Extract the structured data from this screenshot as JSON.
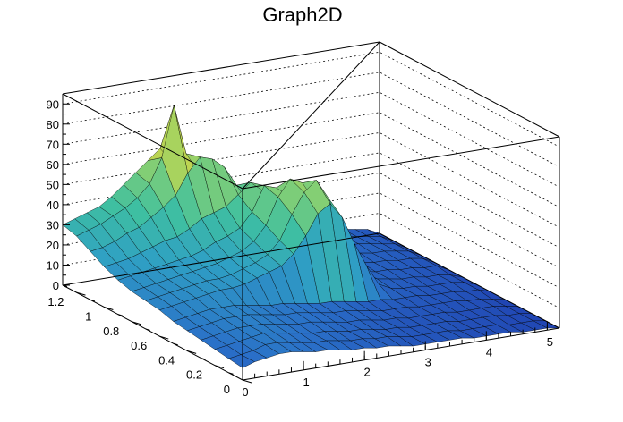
{
  "chart_data": {
    "type": "surface",
    "title": "Graph2D",
    "xlabel": "",
    "ylabel": "",
    "zlabel": "",
    "xlim": [
      0,
      5.2
    ],
    "ylim": [
      0,
      1.3
    ],
    "zlim": [
      0,
      95
    ],
    "grid": true,
    "colormap": "viridis-like (blue-green-yellow)",
    "colormap_stops": [
      "#1f3fb0",
      "#2a70c8",
      "#2fa0c4",
      "#3fc0a0",
      "#8ad070",
      "#e8d838",
      "#f6e718"
    ],
    "x_ticks": [
      0,
      1,
      2,
      3,
      4,
      5
    ],
    "y_ticks": [
      0,
      0.2,
      0.4,
      0.6,
      0.8,
      1,
      1.2
    ],
    "z_ticks": [
      0,
      10,
      20,
      30,
      40,
      50,
      60,
      70,
      80,
      90
    ],
    "x_tick_labels": [
      "0",
      "1",
      "2",
      "3",
      "4",
      "5"
    ],
    "y_tick_labels": [
      "0",
      "0.2",
      "0.4",
      "0.6",
      "0.8",
      "1",
      "1.2"
    ],
    "z_tick_labels": [
      "0",
      "10",
      "20",
      "30",
      "40",
      "50",
      "60",
      "70",
      "80",
      "90"
    ],
    "grid_y": [
      0,
      0.1,
      0.2,
      0.3,
      0.4,
      0.5,
      0.6,
      0.7,
      0.8,
      0.9,
      1.0,
      1.1,
      1.2,
      1.3
    ],
    "grid_x": [
      0,
      0.2,
      0.4,
      0.6,
      0.8,
      1.0,
      1.2,
      1.4,
      1.6,
      1.8,
      2.0,
      2.2,
      2.4,
      2.6,
      2.8,
      3.0,
      3.2,
      3.4,
      3.6,
      3.8,
      4.0,
      4.2,
      4.4,
      4.6,
      4.8,
      5.0,
      5.2
    ],
    "z_values": [
      [
        6,
        8,
        9,
        10,
        10,
        9,
        8,
        8,
        7,
        6,
        6,
        5,
        5,
        4,
        3,
        3,
        3,
        3,
        3,
        2,
        2,
        2,
        2,
        1,
        1,
        1,
        0
      ],
      [
        7,
        8,
        9,
        11,
        11,
        10,
        9,
        8,
        8,
        7,
        6,
        6,
        5,
        5,
        4,
        3,
        3,
        3,
        3,
        2,
        2,
        2,
        2,
        1,
        1,
        1,
        0
      ],
      [
        8,
        9,
        10,
        11,
        12,
        11,
        10,
        9,
        8,
        8,
        7,
        6,
        6,
        5,
        4,
        4,
        3,
        3,
        3,
        3,
        2,
        2,
        2,
        2,
        1,
        1,
        0
      ],
      [
        9,
        10,
        11,
        12,
        12,
        12,
        11,
        10,
        9,
        9,
        8,
        7,
        6,
        6,
        5,
        4,
        4,
        3,
        3,
        3,
        3,
        2,
        2,
        2,
        2,
        1,
        0
      ],
      [
        10,
        11,
        12,
        13,
        13,
        13,
        12,
        11,
        10,
        10,
        9,
        8,
        7,
        7,
        6,
        5,
        4,
        4,
        4,
        3,
        3,
        3,
        3,
        2,
        2,
        1,
        0
      ],
      [
        11,
        12,
        13,
        14,
        14,
        14,
        13,
        12,
        11,
        11,
        10,
        9,
        8,
        8,
        7,
        6,
        5,
        5,
        4,
        4,
        4,
        3,
        3,
        3,
        2,
        2,
        0
      ],
      [
        13,
        14,
        15,
        16,
        17,
        18,
        18,
        19,
        21,
        23,
        25,
        30,
        38,
        48,
        52,
        44,
        30,
        18,
        8,
        5,
        4,
        4,
        3,
        3,
        3,
        2,
        0
      ],
      [
        14,
        15,
        16,
        17,
        18,
        19,
        19,
        20,
        22,
        24,
        27,
        33,
        45,
        55,
        60,
        50,
        35,
        20,
        9,
        6,
        5,
        4,
        4,
        3,
        3,
        2,
        0
      ],
      [
        15,
        16,
        17,
        18,
        19,
        20,
        21,
        22,
        24,
        26,
        30,
        37,
        50,
        58,
        55,
        45,
        32,
        18,
        8,
        6,
        5,
        5,
        4,
        4,
        3,
        3,
        0
      ],
      [
        17,
        18,
        19,
        20,
        21,
        22,
        23,
        25,
        28,
        30,
        33,
        40,
        52,
        50,
        45,
        38,
        27,
        15,
        7,
        6,
        6,
        5,
        5,
        4,
        4,
        3,
        0
      ],
      [
        20,
        21,
        22,
        24,
        26,
        28,
        29,
        32,
        36,
        38,
        40,
        45,
        50,
        45,
        38,
        30,
        22,
        12,
        7,
        7,
        6,
        6,
        5,
        5,
        4,
        3,
        0
      ],
      [
        24,
        25,
        27,
        30,
        32,
        36,
        40,
        45,
        55,
        62,
        60,
        55,
        45,
        35,
        28,
        22,
        16,
        10,
        8,
        7,
        7,
        6,
        6,
        5,
        4,
        3,
        0
      ],
      [
        28,
        30,
        32,
        35,
        38,
        42,
        48,
        60,
        85,
        60,
        50,
        42,
        35,
        28,
        22,
        18,
        14,
        10,
        9,
        8,
        8,
        7,
        6,
        5,
        4,
        3,
        0
      ],
      [
        30,
        32,
        34,
        36,
        40,
        45,
        50,
        55,
        60,
        52,
        44,
        38,
        32,
        26,
        20,
        16,
        13,
        10,
        9,
        8,
        8,
        7,
        6,
        5,
        4,
        3,
        0
      ]
    ]
  }
}
